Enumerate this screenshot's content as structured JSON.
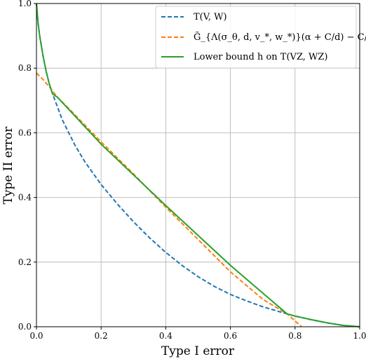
{
  "chart_data": {
    "type": "line",
    "xlabel": "Type I error",
    "ylabel": "Type II error",
    "xlim": [
      0.0,
      1.0
    ],
    "ylim": [
      0.0,
      1.0
    ],
    "grid": true,
    "legend_position": "top-right",
    "x_ticks": [
      "0.0",
      "0.2",
      "0.4",
      "0.6",
      "0.8",
      "1.0"
    ],
    "y_ticks": [
      "0.0",
      "0.2",
      "0.4",
      "0.6",
      "0.8",
      "1.0"
    ],
    "series": [
      {
        "name": "T(V, W)",
        "color": "#1f77b4",
        "style": "dashed",
        "x": [
          0.0,
          0.005,
          0.01,
          0.02,
          0.03,
          0.04,
          0.05,
          0.065,
          0.08,
          0.1,
          0.12,
          0.15,
          0.2,
          0.25,
          0.3,
          0.35,
          0.4,
          0.45,
          0.5,
          0.55,
          0.6,
          0.65,
          0.7,
          0.75,
          0.775,
          0.8,
          0.85,
          0.9,
          0.95,
          1.0
        ],
        "y": [
          1.0,
          0.94,
          0.9,
          0.84,
          0.79,
          0.75,
          0.72,
          0.68,
          0.64,
          0.6,
          0.56,
          0.51,
          0.44,
          0.38,
          0.325,
          0.275,
          0.23,
          0.19,
          0.155,
          0.125,
          0.1,
          0.08,
          0.062,
          0.047,
          0.04,
          0.033,
          0.022,
          0.012,
          0.004,
          0.0
        ]
      },
      {
        "name": "G̃_{Λ(σ_θ, d, v_*, w_*)}(α + C/d) − C/d",
        "color": "#ff7f0e",
        "style": "dashed",
        "x": [
          0.0,
          0.005,
          0.01,
          0.02,
          0.04,
          0.065,
          0.1,
          0.2,
          0.3,
          0.4,
          0.5,
          0.6,
          0.7,
          0.775,
          0.8,
          0.82
        ],
        "y": [
          0.785,
          0.78,
          0.775,
          0.765,
          0.742,
          0.71,
          0.675,
          0.572,
          0.473,
          0.37,
          0.27,
          0.17,
          0.085,
          0.04,
          0.018,
          0.0
        ]
      },
      {
        "name": "Lower bound h on T(VZ, WZ)",
        "color": "#2ca02c",
        "style": "solid",
        "x": [
          0.0,
          0.005,
          0.01,
          0.02,
          0.03,
          0.04,
          0.05,
          0.065,
          0.2,
          0.4,
          0.6,
          0.775,
          0.8,
          0.85,
          0.9,
          0.95,
          1.0
        ],
        "y": [
          1.0,
          0.94,
          0.9,
          0.84,
          0.79,
          0.75,
          0.72,
          0.71,
          0.565,
          0.375,
          0.19,
          0.04,
          0.033,
          0.022,
          0.012,
          0.004,
          0.0
        ]
      }
    ]
  }
}
